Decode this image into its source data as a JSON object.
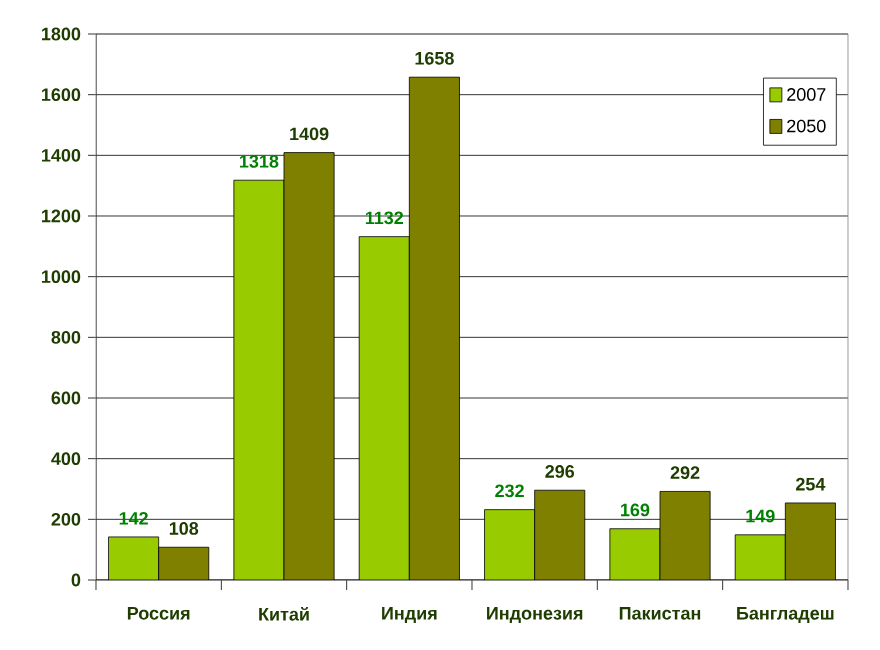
{
  "chart_data": {
    "type": "bar",
    "categories": [
      "Россия",
      "Китай",
      "Индия",
      "Индонезия",
      "Пакистан",
      "Бангладеш"
    ],
    "series": [
      {
        "name": "2007",
        "color": "#99cc00",
        "values": [
          142,
          1318,
          1132,
          232,
          169,
          149
        ]
      },
      {
        "name": "2050",
        "color": "#808000",
        "values": [
          108,
          1409,
          1658,
          296,
          292,
          254
        ]
      }
    ],
    "ylim": [
      0,
      1800
    ],
    "yticks": [
      0,
      200,
      400,
      600,
      800,
      1000,
      1200,
      1400,
      1600,
      1800
    ],
    "grid": "y",
    "legend": "top right",
    "data_labels": true
  }
}
